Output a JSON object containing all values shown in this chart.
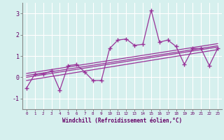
{
  "xlabel": "Windchill (Refroidissement éolien,°C)",
  "xlim": [
    -0.5,
    23.5
  ],
  "ylim": [
    -1.5,
    3.5
  ],
  "yticks": [
    -1,
    0,
    1,
    2,
    3
  ],
  "xticks": [
    0,
    1,
    2,
    3,
    4,
    5,
    6,
    7,
    8,
    9,
    10,
    11,
    12,
    13,
    14,
    15,
    16,
    17,
    18,
    19,
    20,
    21,
    22,
    23
  ],
  "bg_color": "#d6f0ee",
  "line_color": "#993399",
  "grid_color": "#ffffff",
  "scatter_x": [
    0,
    1,
    2,
    3,
    4,
    5,
    6,
    7,
    8,
    9,
    10,
    11,
    12,
    13,
    14,
    15,
    16,
    17,
    18,
    19,
    20,
    21,
    22,
    23
  ],
  "scatter_y": [
    -0.5,
    0.15,
    0.15,
    0.3,
    -0.6,
    0.55,
    0.6,
    0.25,
    -0.15,
    -0.15,
    1.35,
    1.75,
    1.8,
    1.5,
    1.55,
    3.15,
    1.65,
    1.75,
    1.45,
    0.6,
    1.35,
    1.35,
    0.55,
    1.35
  ],
  "reg_lines": [
    {
      "x0": 0,
      "y0": -0.15,
      "x1": 23,
      "y1": 1.3
    },
    {
      "x0": 0,
      "y0": 0.0,
      "x1": 23,
      "y1": 1.42
    },
    {
      "x0": 0,
      "y0": 0.08,
      "x1": 23,
      "y1": 1.48
    },
    {
      "x0": 0,
      "y0": 0.18,
      "x1": 23,
      "y1": 1.58
    }
  ]
}
